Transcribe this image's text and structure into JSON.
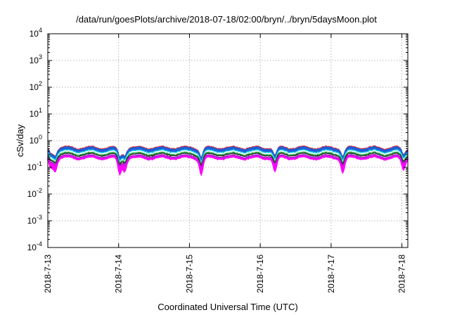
{
  "chart_data": {
    "type": "area",
    "title": "/data/run/goesPlots/archive/2018-07-18/02:00/bryn/../bryn/5daysMoon.plot",
    "xlabel": "Coordinated Universal Time (UTC)",
    "ylabel": "cSv/day",
    "yscale": "log",
    "ylim": [
      0.0001,
      10000
    ],
    "y_ticks": [
      {
        "value": 0.0001,
        "base": "10",
        "exp": "-4"
      },
      {
        "value": 0.001,
        "base": "10",
        "exp": "-3"
      },
      {
        "value": 0.01,
        "base": "10",
        "exp": "-2"
      },
      {
        "value": 0.1,
        "base": "10",
        "exp": "-1"
      },
      {
        "value": 1,
        "base": "10",
        "exp": "0"
      },
      {
        "value": 10,
        "base": "10",
        "exp": "1"
      },
      {
        "value": 100,
        "base": "10",
        "exp": "2"
      },
      {
        "value": 1000,
        "base": "10",
        "exp": "3"
      },
      {
        "value": 10000,
        "base": "10",
        "exp": "4"
      }
    ],
    "x_range_days": [
      "2018-07-13 00:00",
      "2018-07-18 02:00"
    ],
    "x_ticks": [
      "2018-7-13",
      "2018-7-14",
      "2018-7-15",
      "2018-7-16",
      "2018-7-17",
      "2018-7-18"
    ],
    "grid": true,
    "legend": "none",
    "colors": {
      "magenta": "#ff00ff",
      "blue": "#1f5fd6",
      "red": "#e8202a",
      "cyan": "#22d8e8",
      "green": "#2fb84a",
      "black": "#222222",
      "purple": "#a020c8"
    },
    "series_description": [
      {
        "color": "red",
        "level": 0.55
      },
      {
        "color": "blue",
        "level": 0.5
      },
      {
        "color": "cyan",
        "level": 0.4
      },
      {
        "color": "green",
        "level": 0.33
      },
      {
        "color": "black",
        "level": 0.3
      },
      {
        "color": "purple",
        "level": 0.26
      },
      {
        "color": "magenta",
        "level": 0.22
      }
    ],
    "dips": [
      {
        "time": "2018-07-13 01:00",
        "depth": 0.35
      },
      {
        "time": "2018-07-13 02:30",
        "depth": 0.45
      },
      {
        "time": "2018-07-14 00:20",
        "depth": 0.55
      },
      {
        "time": "2018-07-14 02:00",
        "depth": 0.45
      },
      {
        "time": "2018-07-15 04:00",
        "depth": 0.55
      },
      {
        "time": "2018-07-16 05:00",
        "depth": 0.5
      },
      {
        "time": "2018-07-17 04:00",
        "depth": 0.5
      },
      {
        "time": "2018-07-18 00:30",
        "depth": 0.45
      }
    ]
  }
}
